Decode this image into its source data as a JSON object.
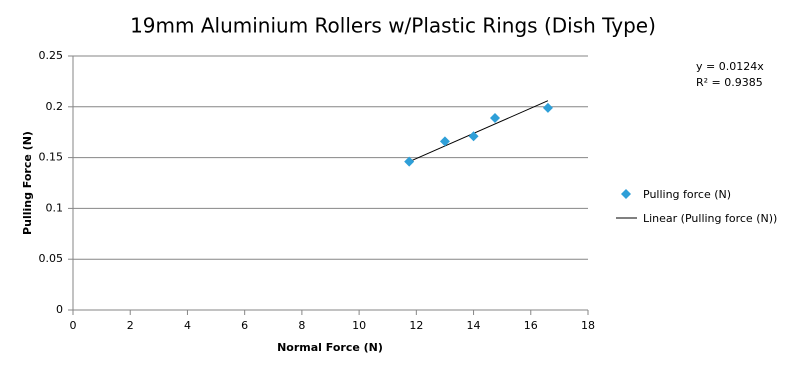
{
  "chart_data": {
    "type": "scatter",
    "title": "19mm Aluminium Rollers w/Plastic Rings (Dish Type)",
    "x_label": "Normal Force (N)",
    "y_label": "Pulling Force (N)",
    "series": [
      {
        "name": "Pulling force (N)",
        "color": "#2e9fd8",
        "x": [
          11.75,
          13.0,
          14.0,
          14.75,
          16.6
        ],
        "values": [
          0.146,
          0.166,
          0.171,
          0.189,
          0.199
        ]
      }
    ],
    "trendline": {
      "name": "Linear (Pulling force (N))",
      "color": "#000000",
      "x": [
        11.75,
        16.6
      ],
      "values": [
        0.146,
        0.206
      ],
      "equation": "y = 0.0124x",
      "r_squared": "R² = 0.9385"
    },
    "xlim": [
      0,
      18
    ],
    "xticks": [
      0,
      2,
      4,
      6,
      8,
      10,
      12,
      14,
      16,
      18
    ],
    "ylim": [
      0,
      0.25
    ],
    "yticks": [
      0,
      0.05,
      0.1,
      0.15,
      0.2,
      0.25
    ],
    "grid": true,
    "legend_position": "right"
  }
}
